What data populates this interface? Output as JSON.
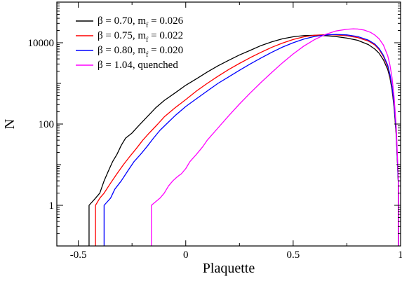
{
  "chart_data": {
    "type": "line",
    "title": "",
    "xlabel": "Plaquette",
    "ylabel": "N",
    "xlim": [
      -0.6,
      1.0
    ],
    "ylim": [
      0.1,
      100000
    ],
    "yscale": "log",
    "grid": false,
    "legend_position": "top-left",
    "x_ticks": [
      -0.5,
      0,
      0.5,
      1
    ],
    "x_tick_labels": [
      "-0.5",
      "0",
      "0.5",
      "1"
    ],
    "y_ticks": [
      1,
      100,
      10000
    ],
    "y_tick_labels": [
      "1",
      "100",
      "10000"
    ],
    "series": [
      {
        "name": "β = 0.70, m_f = 0.026",
        "legend": {
          "main": "β = 0.70, m",
          "sub": "f",
          "rest": " = 0.026"
        },
        "color": "#000000",
        "x": [
          -0.45,
          -0.42,
          -0.4,
          -0.38,
          -0.36,
          -0.34,
          -0.32,
          -0.3,
          -0.28,
          -0.25,
          -0.22,
          -0.18,
          -0.14,
          -0.1,
          -0.05,
          0.0,
          0.05,
          0.1,
          0.15,
          0.2,
          0.25,
          0.3,
          0.35,
          0.4,
          0.45,
          0.5,
          0.55,
          0.6,
          0.65,
          0.7,
          0.75,
          0.8,
          0.85,
          0.88,
          0.9,
          0.92,
          0.94,
          0.95,
          0.96,
          0.97,
          0.98,
          0.99
        ],
        "y": [
          1,
          1.5,
          2,
          4,
          7,
          12,
          18,
          30,
          45,
          60,
          90,
          150,
          250,
          380,
          580,
          900,
          1300,
          1900,
          2700,
          3700,
          5000,
          6500,
          8500,
          10500,
          12500,
          14000,
          15000,
          15200,
          14900,
          14200,
          13000,
          11500,
          9000,
          7000,
          5500,
          3800,
          2200,
          1400,
          700,
          250,
          50,
          3
        ]
      },
      {
        "name": "β = 0.75, m_f = 0.022",
        "legend": {
          "main": "β = 0.75, m",
          "sub": "f",
          "rest": " = 0.022"
        },
        "color": "#ff0000",
        "x": [
          -0.42,
          -0.4,
          -0.38,
          -0.35,
          -0.32,
          -0.29,
          -0.26,
          -0.23,
          -0.2,
          -0.17,
          -0.13,
          -0.1,
          -0.05,
          0.0,
          0.05,
          0.1,
          0.15,
          0.2,
          0.25,
          0.3,
          0.35,
          0.4,
          0.45,
          0.5,
          0.55,
          0.6,
          0.65,
          0.7,
          0.75,
          0.8,
          0.85,
          0.88,
          0.9,
          0.92,
          0.94,
          0.95,
          0.96,
          0.97,
          0.98,
          0.99
        ],
        "y": [
          1,
          1.5,
          2,
          3.5,
          6,
          10,
          16,
          25,
          40,
          60,
          100,
          150,
          250,
          400,
          650,
          1000,
          1500,
          2200,
          3100,
          4300,
          5800,
          7700,
          9800,
          12000,
          14000,
          15300,
          15800,
          15600,
          14800,
          13400,
          11000,
          8800,
          6800,
          4600,
          2600,
          1600,
          800,
          280,
          55,
          3
        ]
      },
      {
        "name": "β = 0.80, m_f = 0.020",
        "legend": {
          "main": "β = 0.80, m",
          "sub": "f",
          "rest": " = 0.020"
        },
        "color": "#0000ff",
        "x": [
          -0.38,
          -0.35,
          -0.33,
          -0.3,
          -0.27,
          -0.24,
          -0.21,
          -0.18,
          -0.15,
          -0.12,
          -0.09,
          -0.05,
          0.0,
          0.05,
          0.1,
          0.15,
          0.2,
          0.25,
          0.3,
          0.35,
          0.4,
          0.45,
          0.5,
          0.55,
          0.6,
          0.65,
          0.7,
          0.75,
          0.8,
          0.85,
          0.88,
          0.9,
          0.92,
          0.94,
          0.95,
          0.96,
          0.97,
          0.98,
          0.99
        ],
        "y": [
          1,
          1.5,
          2.5,
          4,
          7,
          12,
          18,
          28,
          45,
          70,
          100,
          160,
          270,
          420,
          650,
          1000,
          1450,
          2100,
          3000,
          4200,
          5800,
          7800,
          10000,
          12300,
          14300,
          15600,
          16000,
          15600,
          14200,
          11600,
          9300,
          7200,
          4900,
          2800,
          1700,
          850,
          300,
          60,
          3
        ]
      },
      {
        "name": "β = 1.04, quenched",
        "legend": {
          "main": "β = 1.04, quenched",
          "sub": "",
          "rest": ""
        },
        "color": "#ff00ff",
        "x": [
          -0.16,
          -0.12,
          -0.1,
          -0.08,
          -0.06,
          -0.04,
          -0.02,
          0.0,
          0.02,
          0.05,
          0.08,
          0.1,
          0.15,
          0.2,
          0.25,
          0.3,
          0.35,
          0.4,
          0.45,
          0.5,
          0.55,
          0.6,
          0.65,
          0.7,
          0.75,
          0.78,
          0.8,
          0.83,
          0.86,
          0.88,
          0.9,
          0.92,
          0.94,
          0.95,
          0.96,
          0.97,
          0.98,
          0.99
        ],
        "y": [
          1,
          1.5,
          2,
          3,
          4,
          5,
          6,
          8,
          12,
          18,
          28,
          40,
          80,
          160,
          310,
          580,
          1050,
          1850,
          3200,
          5300,
          8300,
          12000,
          16000,
          19500,
          21500,
          22000,
          21800,
          20500,
          18000,
          15500,
          12500,
          8800,
          4800,
          2900,
          1400,
          450,
          80,
          4
        ]
      }
    ]
  }
}
